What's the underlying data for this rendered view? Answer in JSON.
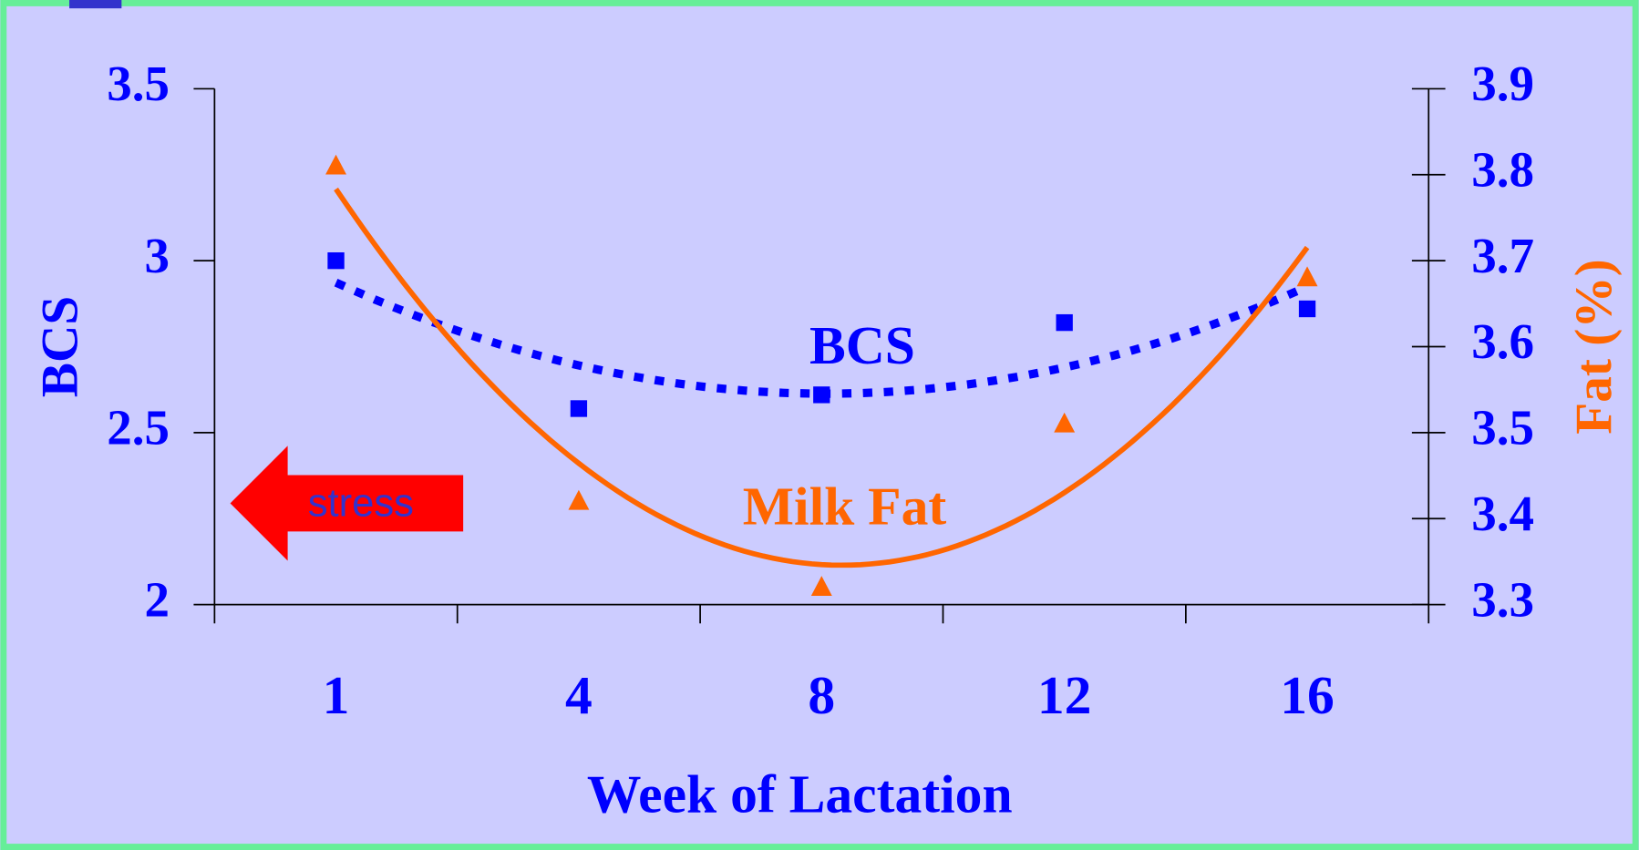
{
  "chart_data": {
    "type": "line-scatter",
    "x_label": "Week of Lactation",
    "y_label": "BCS",
    "y2_label": "Fat (%)",
    "categories": [
      "1",
      "4",
      "8",
      "12",
      "16"
    ],
    "ylim": [
      2,
      3.5
    ],
    "yticks": [
      2,
      2.5,
      3,
      3.5
    ],
    "y2lim": [
      3.3,
      3.9
    ],
    "y2ticks": [
      3.3,
      3.4,
      3.5,
      3.6,
      3.7,
      3.8,
      3.9
    ],
    "series": [
      {
        "name": "BCS",
        "color": "#0000ff",
        "marker": "square",
        "trendline": "dotted",
        "values": [
          3.0,
          2.57,
          2.61,
          2.82,
          2.86
        ]
      },
      {
        "name": "Milk Fat",
        "color": "#ff6600",
        "marker": "triangle",
        "trendline": "solid",
        "axis": "y2",
        "values": [
          3.81,
          3.42,
          3.32,
          3.51,
          3.68
        ]
      }
    ],
    "annotation": "stress"
  }
}
